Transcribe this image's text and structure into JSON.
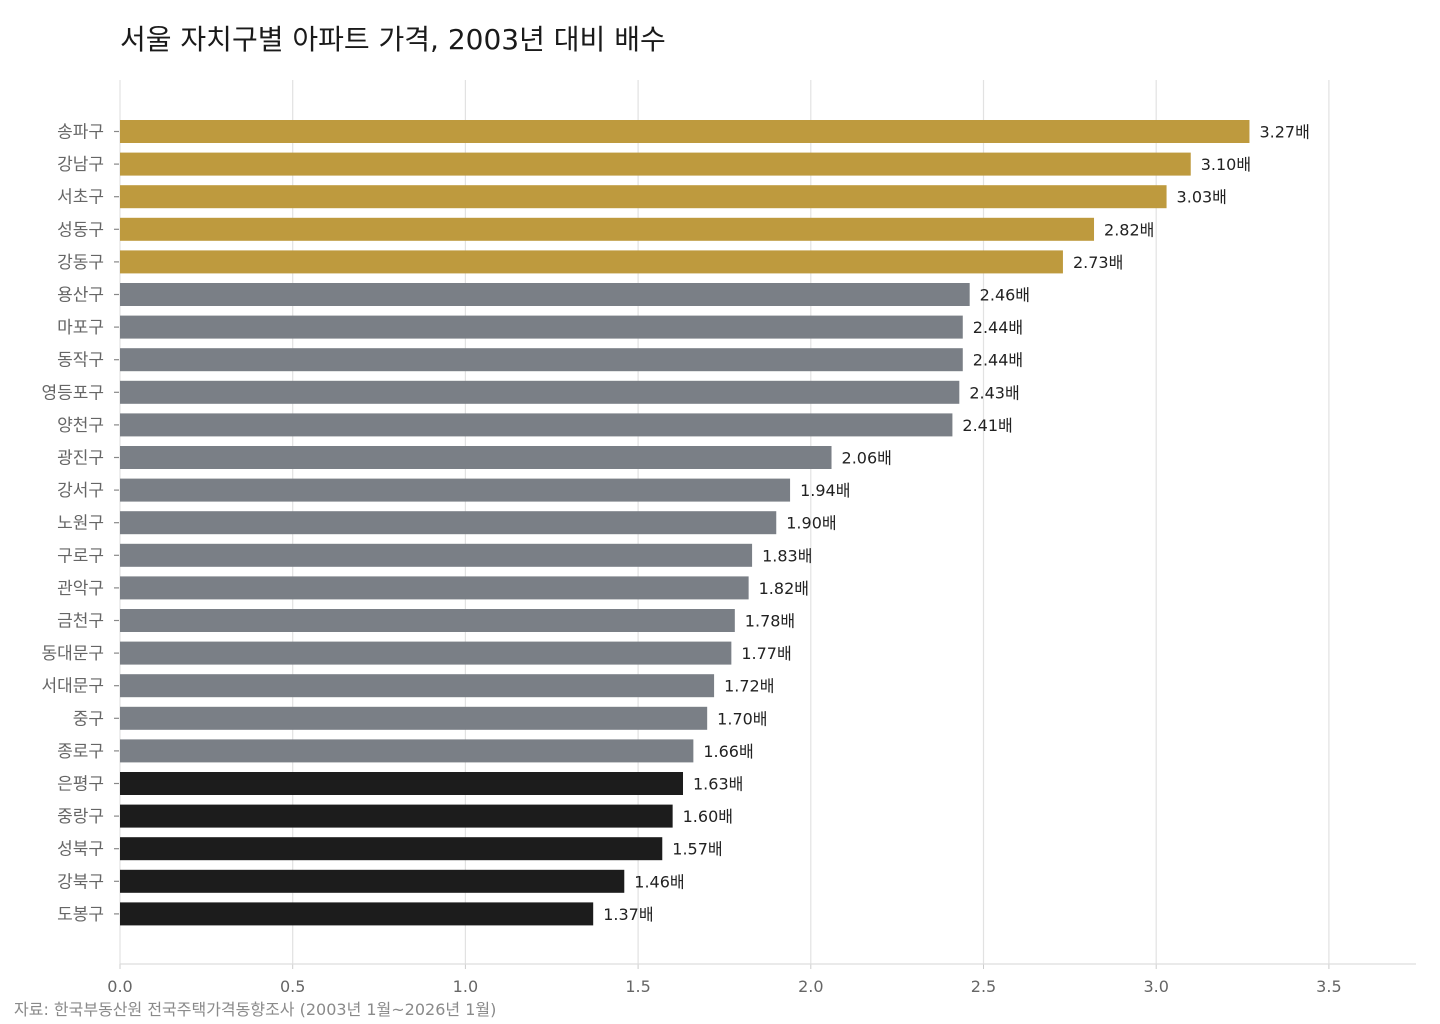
{
  "chart_data": {
    "type": "bar",
    "orientation": "horizontal",
    "title": "서울 자치구별 아파트 가격, 2003년 대비 배수",
    "source": "자료: 한국부동산원 전국주택가격동향조사 (2003년 1월~2026년 1월)",
    "value_suffix": "배",
    "xlim": [
      0,
      3.75
    ],
    "xticks": [
      "0.0",
      "0.5",
      "1.0",
      "1.5",
      "2.0",
      "2.5",
      "3.0",
      "3.5"
    ],
    "grid": true,
    "categories": [
      "송파구",
      "강남구",
      "서초구",
      "성동구",
      "강동구",
      "용산구",
      "마포구",
      "동작구",
      "영등포구",
      "양천구",
      "광진구",
      "강서구",
      "노원구",
      "구로구",
      "관악구",
      "금천구",
      "동대문구",
      "서대문구",
      "중구",
      "종로구",
      "은평구",
      "중랑구",
      "성북구",
      "강북구",
      "도봉구"
    ],
    "values": [
      3.27,
      3.1,
      3.03,
      2.82,
      2.73,
      2.46,
      2.44,
      2.44,
      2.43,
      2.41,
      2.06,
      1.94,
      1.9,
      1.83,
      1.82,
      1.78,
      1.77,
      1.72,
      1.7,
      1.66,
      1.63,
      1.6,
      1.57,
      1.46,
      1.37
    ],
    "value_labels": [
      "3.27배",
      "3.10배",
      "3.03배",
      "2.82배",
      "2.73배",
      "2.46배",
      "2.44배",
      "2.44배",
      "2.43배",
      "2.41배",
      "2.06배",
      "1.94배",
      "1.90배",
      "1.83배",
      "1.82배",
      "1.78배",
      "1.77배",
      "1.72배",
      "1.70배",
      "1.66배",
      "1.63배",
      "1.60배",
      "1.57배",
      "1.46배",
      "1.37배"
    ],
    "groups": [
      "top",
      "top",
      "top",
      "top",
      "top",
      "mid",
      "mid",
      "mid",
      "mid",
      "mid",
      "mid",
      "mid",
      "mid",
      "mid",
      "mid",
      "mid",
      "mid",
      "mid",
      "mid",
      "mid",
      "bottom",
      "bottom",
      "bottom",
      "bottom",
      "bottom"
    ],
    "colors": {
      "top": "#BE9A3E",
      "mid": "#7A7F86",
      "bottom": "#1C1C1C",
      "grid": "#E2E2E2",
      "axis": "#DDDDDD"
    }
  }
}
